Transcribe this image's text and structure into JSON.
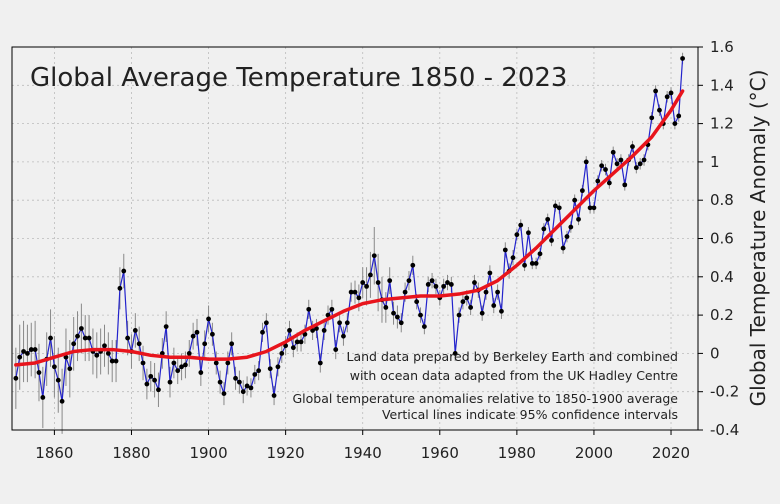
{
  "chart_data": {
    "type": "line",
    "title": "Global Average Temperature 1850 - 2023",
    "ylabel": "Global Temperature Anomaly (°C)",
    "notes": [
      "Land data prepared by Berkeley Earth and combined",
      "with ocean data adapted from the UK Hadley Centre",
      "Global temperature anomalies relative to 1850-1900 average",
      "Vertical lines indicate 95% confidence intervals"
    ],
    "xlim": [
      1849,
      2027
    ],
    "ylim": [
      -0.4,
      1.6
    ],
    "xticks": [
      1860,
      1880,
      1900,
      1920,
      1940,
      1960,
      1980,
      2000,
      2020
    ],
    "yticks": [
      -0.4,
      -0.2,
      0,
      0.2,
      0.4,
      0.6,
      0.8,
      1,
      1.2,
      1.4,
      1.6
    ],
    "grid": true,
    "x": [
      1850,
      1851,
      1852,
      1853,
      1854,
      1855,
      1856,
      1857,
      1858,
      1859,
      1860,
      1861,
      1862,
      1863,
      1864,
      1865,
      1866,
      1867,
      1868,
      1869,
      1870,
      1871,
      1872,
      1873,
      1874,
      1875,
      1876,
      1877,
      1878,
      1879,
      1880,
      1881,
      1882,
      1883,
      1884,
      1885,
      1886,
      1887,
      1888,
      1889,
      1890,
      1891,
      1892,
      1893,
      1894,
      1895,
      1896,
      1897,
      1898,
      1899,
      1900,
      1901,
      1902,
      1903,
      1904,
      1905,
      1906,
      1907,
      1908,
      1909,
      1910,
      1911,
      1912,
      1913,
      1914,
      1915,
      1916,
      1917,
      1918,
      1919,
      1920,
      1921,
      1922,
      1923,
      1924,
      1925,
      1926,
      1927,
      1928,
      1929,
      1930,
      1931,
      1932,
      1933,
      1934,
      1935,
      1936,
      1937,
      1938,
      1939,
      1940,
      1941,
      1942,
      1943,
      1944,
      1945,
      1946,
      1947,
      1948,
      1949,
      1950,
      1951,
      1952,
      1953,
      1954,
      1955,
      1956,
      1957,
      1958,
      1959,
      1960,
      1961,
      1962,
      1963,
      1964,
      1965,
      1966,
      1967,
      1968,
      1969,
      1970,
      1971,
      1972,
      1973,
      1974,
      1975,
      1976,
      1977,
      1978,
      1979,
      1980,
      1981,
      1982,
      1983,
      1984,
      1985,
      1986,
      1987,
      1988,
      1989,
      1990,
      1991,
      1992,
      1993,
      1994,
      1995,
      1996,
      1997,
      1998,
      1999,
      2000,
      2001,
      2002,
      2003,
      2004,
      2005,
      2006,
      2007,
      2008,
      2009,
      2010,
      2011,
      2012,
      2013,
      2014,
      2015,
      2016,
      2017,
      2018,
      2019,
      2020,
      2021,
      2022,
      2023
    ],
    "series": [
      {
        "color": "#2323cc",
        "marker_color": "#000000",
        "error_color": "#888888",
        "values": [
          -0.13,
          -0.02,
          0.01,
          0.0,
          0.02,
          0.02,
          -0.1,
          -0.23,
          -0.03,
          0.08,
          -0.07,
          -0.14,
          -0.25,
          -0.02,
          -0.08,
          0.05,
          0.09,
          0.13,
          0.08,
          0.08,
          0.01,
          -0.01,
          0.01,
          0.04,
          0.0,
          -0.04,
          -0.04,
          0.34,
          0.43,
          0.08,
          0.01,
          0.12,
          0.05,
          -0.05,
          -0.16,
          -0.12,
          -0.14,
          -0.19,
          0.0,
          0.14,
          -0.15,
          -0.05,
          -0.09,
          -0.07,
          -0.06,
          0.0,
          0.09,
          0.11,
          -0.1,
          0.05,
          0.18,
          0.1,
          -0.05,
          -0.15,
          -0.21,
          -0.05,
          0.05,
          -0.13,
          -0.15,
          -0.2,
          -0.17,
          -0.18,
          -0.11,
          -0.09,
          0.11,
          0.16,
          -0.08,
          -0.22,
          -0.07,
          0.0,
          0.04,
          0.12,
          0.03,
          0.06,
          0.06,
          0.1,
          0.23,
          0.12,
          0.13,
          -0.05,
          0.12,
          0.2,
          0.23,
          0.02,
          0.16,
          0.09,
          0.16,
          0.32,
          0.32,
          0.29,
          0.37,
          0.35,
          0.41,
          0.51,
          0.37,
          0.28,
          0.24,
          0.38,
          0.21,
          0.19,
          0.16,
          0.32,
          0.38,
          0.46,
          0.27,
          0.2,
          0.14,
          0.36,
          0.38,
          0.35,
          0.29,
          0.35,
          0.37,
          0.36,
          0.0,
          0.2,
          0.27,
          0.29,
          0.24,
          0.37,
          0.33,
          0.21,
          0.32,
          0.42,
          0.25,
          0.32,
          0.22,
          0.54,
          0.43,
          0.5,
          0.62,
          0.67,
          0.46,
          0.63,
          0.47,
          0.47,
          0.52,
          0.65,
          0.7,
          0.59,
          0.77,
          0.76,
          0.55,
          0.61,
          0.66,
          0.8,
          0.7,
          0.85,
          1.0,
          0.76,
          0.76,
          0.9,
          0.98,
          0.96,
          0.89,
          1.05,
          0.99,
          1.01,
          0.88,
          1.01,
          1.08,
          0.97,
          0.99,
          1.01,
          1.09,
          1.23,
          1.37,
          1.27,
          1.2,
          1.34,
          1.36,
          1.2,
          1.24,
          1.54
        ],
        "errors": [
          0.16,
          0.17,
          0.16,
          0.15,
          0.14,
          0.15,
          0.15,
          0.16,
          0.14,
          0.15,
          0.16,
          0.17,
          0.17,
          0.15,
          0.15,
          0.14,
          0.13,
          0.13,
          0.12,
          0.12,
          0.12,
          0.12,
          0.12,
          0.11,
          0.11,
          0.11,
          0.11,
          0.11,
          0.09,
          0.09,
          0.09,
          0.09,
          0.09,
          0.09,
          0.08,
          0.08,
          0.09,
          0.09,
          0.08,
          0.08,
          0.08,
          0.08,
          0.07,
          0.07,
          0.07,
          0.07,
          0.07,
          0.07,
          0.07,
          0.07,
          0.07,
          0.06,
          0.06,
          0.06,
          0.06,
          0.06,
          0.06,
          0.06,
          0.06,
          0.06,
          0.05,
          0.05,
          0.05,
          0.05,
          0.05,
          0.05,
          0.05,
          0.05,
          0.05,
          0.05,
          0.05,
          0.05,
          0.05,
          0.05,
          0.05,
          0.05,
          0.05,
          0.05,
          0.05,
          0.05,
          0.05,
          0.05,
          0.05,
          0.05,
          0.05,
          0.05,
          0.05,
          0.05,
          0.06,
          0.07,
          0.08,
          0.1,
          0.12,
          0.15,
          0.15,
          0.12,
          0.08,
          0.07,
          0.06,
          0.06,
          0.05,
          0.05,
          0.05,
          0.05,
          0.04,
          0.04,
          0.04,
          0.04,
          0.04,
          0.04,
          0.04,
          0.04,
          0.04,
          0.04,
          0.04,
          0.04,
          0.04,
          0.04,
          0.04,
          0.04,
          0.04,
          0.04,
          0.04,
          0.04,
          0.04,
          0.04,
          0.04,
          0.04,
          0.04,
          0.04,
          0.03,
          0.03,
          0.03,
          0.03,
          0.03,
          0.03,
          0.03,
          0.03,
          0.03,
          0.03,
          0.03,
          0.03,
          0.03,
          0.03,
          0.03,
          0.03,
          0.03,
          0.03,
          0.03,
          0.03,
          0.03,
          0.03,
          0.03,
          0.03,
          0.03,
          0.03,
          0.03,
          0.03,
          0.03,
          0.03,
          0.03,
          0.03,
          0.03,
          0.03,
          0.03,
          0.03,
          0.03,
          0.03,
          0.03,
          0.03,
          0.03,
          0.03,
          0.03,
          0.03
        ]
      },
      {
        "color": "#e8141c",
        "x": [
          1850,
          1855,
          1860,
          1865,
          1870,
          1875,
          1880,
          1885,
          1890,
          1895,
          1900,
          1905,
          1910,
          1915,
          1920,
          1925,
          1930,
          1935,
          1940,
          1945,
          1950,
          1955,
          1960,
          1965,
          1970,
          1975,
          1980,
          1985,
          1990,
          1995,
          2000,
          2005,
          2010,
          2015,
          2020,
          2023
        ],
        "values": [
          -0.06,
          -0.05,
          -0.02,
          0.01,
          0.02,
          0.02,
          0.01,
          -0.01,
          -0.02,
          -0.02,
          -0.03,
          -0.03,
          -0.02,
          0.01,
          0.06,
          0.12,
          0.17,
          0.22,
          0.26,
          0.28,
          0.29,
          0.3,
          0.3,
          0.31,
          0.33,
          0.38,
          0.46,
          0.55,
          0.65,
          0.75,
          0.85,
          0.94,
          1.03,
          1.13,
          1.27,
          1.37
        ]
      }
    ]
  }
}
